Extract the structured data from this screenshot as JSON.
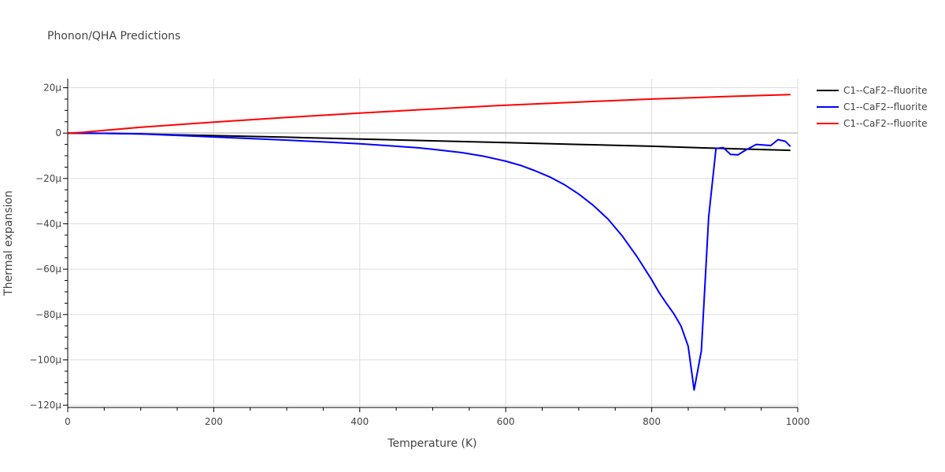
{
  "chart_data": {
    "type": "line",
    "title": "Phonon/QHA Predictions",
    "xlabel": "Temperature (K)",
    "ylabel": "Thermal expansion",
    "xlim": [
      0,
      1000
    ],
    "ylim": [
      -121,
      24
    ],
    "x_ticks": [
      0,
      200,
      400,
      600,
      800,
      1000
    ],
    "x_tick_labels": [
      "0",
      "200",
      "400",
      "600",
      "800",
      "1000"
    ],
    "y_ticks": [
      20,
      0,
      -20,
      -40,
      -60,
      -80,
      -100,
      -120
    ],
    "y_tick_labels": [
      "20μ",
      "0",
      "−20μ",
      "−40μ",
      "−60μ",
      "−80μ",
      "−100μ",
      "−120μ"
    ],
    "y_unit_scale": "1e-6",
    "grid": true,
    "legend_position": "top-right",
    "series": [
      {
        "name": "C1--CaF2--fluorite",
        "color": "#000000",
        "x": [
          0,
          20,
          50,
          100,
          150,
          200,
          300,
          400,
          500,
          600,
          700,
          800,
          900,
          990
        ],
        "y": [
          0,
          0,
          -0.1,
          -0.3,
          -0.8,
          -1.1,
          -1.8,
          -2.6,
          -3.4,
          -4.2,
          -5.0,
          -5.8,
          -6.8,
          -7.6
        ]
      },
      {
        "name": "C1--CaF2--fluorite",
        "color": "#0000ff",
        "x": [
          0,
          50,
          100,
          150,
          200,
          250,
          300,
          350,
          400,
          450,
          480,
          500,
          540,
          570,
          600,
          620,
          640,
          660,
          680,
          700,
          720,
          740,
          760,
          780,
          800,
          810,
          820,
          830,
          840,
          850,
          858,
          868,
          878,
          888,
          898,
          908,
          918,
          928,
          943,
          963,
          973,
          983,
          990
        ],
        "y": [
          0,
          -0.1,
          -0.4,
          -1.0,
          -1.7,
          -2.4,
          -3.1,
          -3.9,
          -4.7,
          -5.8,
          -6.5,
          -7.1,
          -8.6,
          -10.2,
          -12.4,
          -14.2,
          -16.6,
          -19.3,
          -22.7,
          -26.9,
          -31.9,
          -37.9,
          -45.5,
          -54.6,
          -64.7,
          -70.3,
          -75.0,
          -79.5,
          -85.0,
          -94.0,
          -113.3,
          -96.0,
          -37.0,
          -6.8,
          -6.4,
          -9.4,
          -9.6,
          -7.6,
          -5.0,
          -5.5,
          -2.9,
          -3.6,
          -5.9
        ]
      },
      {
        "name": "C1--CaF2--fluorite",
        "color": "#ff0000",
        "x": [
          0,
          20,
          50,
          100,
          150,
          200,
          300,
          400,
          500,
          600,
          700,
          800,
          900,
          990
        ],
        "y": [
          0,
          0.3,
          1.2,
          2.6,
          3.7,
          4.8,
          6.9,
          8.8,
          10.6,
          12.3,
          13.7,
          15.0,
          16.1,
          17.0
        ]
      }
    ]
  }
}
